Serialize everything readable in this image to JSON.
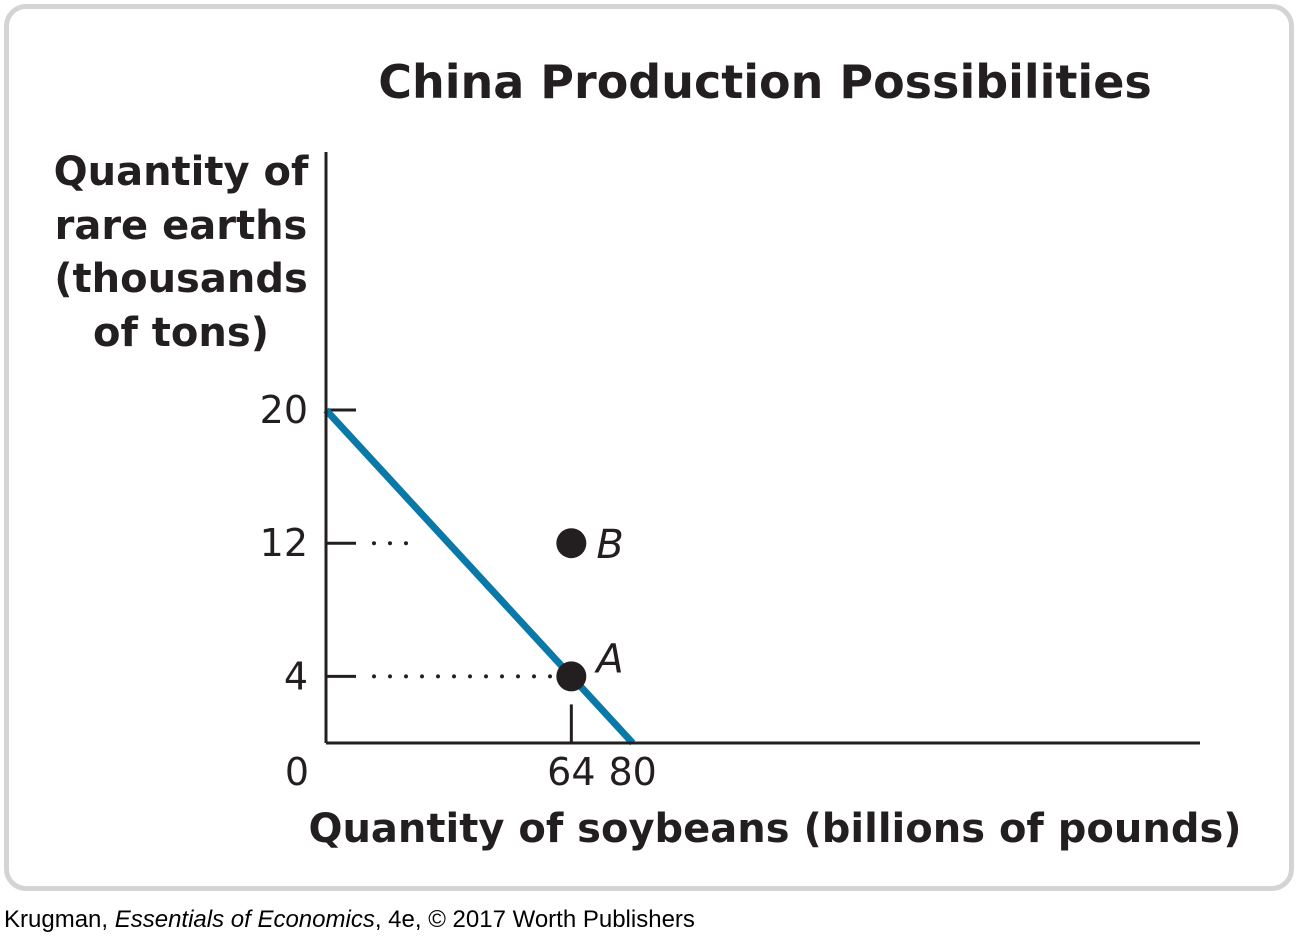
{
  "chart_data": {
    "type": "line",
    "title": "China Production Possibilities",
    "ylabel_lines": [
      "Quantity of",
      "rare earths",
      "(thousands",
      "of tons)"
    ],
    "xlabel": "Quantity of soybeans (billions of pounds)",
    "origin_label": "0",
    "xlim": [
      0,
      228
    ],
    "ylim": [
      0,
      20
    ],
    "x_ticks": [
      64,
      80
    ],
    "y_ticks": [
      20,
      12,
      4
    ],
    "series": [
      {
        "x": [
          0,
          80
        ],
        "y": [
          20,
          0
        ],
        "color": "#0b79a8"
      }
    ],
    "points": [
      {
        "label": "A",
        "x": 64,
        "y": 4
      },
      {
        "label": "B",
        "x": 64,
        "y": 12
      }
    ],
    "guides": [
      {
        "from_x": 0,
        "to_x": 64,
        "y": 4
      },
      {
        "from_x": 0,
        "to_x": 27,
        "y": 12
      },
      {
        "x": 64,
        "from_y": 0,
        "to_y": 4
      }
    ],
    "grid": false
  },
  "credit": {
    "author": "Krugman, ",
    "book": "Essentials of Economics",
    "rest": ", 4e, © 2017 Worth Publishers"
  }
}
